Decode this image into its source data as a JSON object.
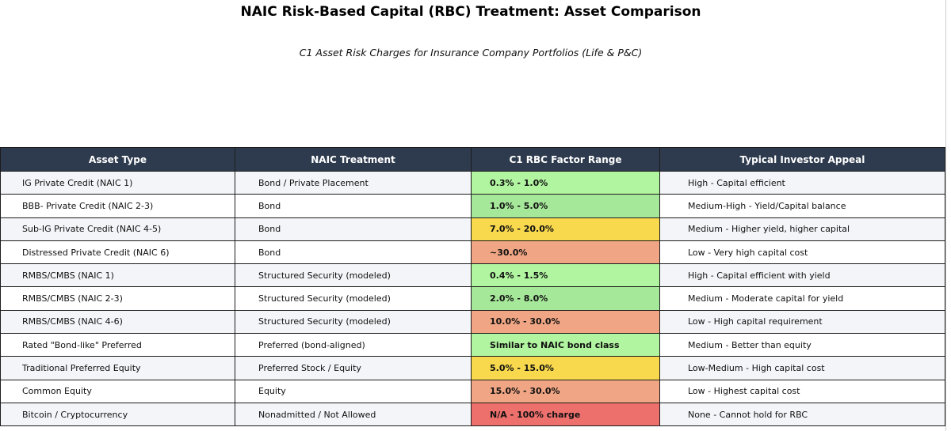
{
  "title": "NAIC Risk-Based Capital (RBC) Treatment: Asset Comparison",
  "subtitle": "C1 Asset Risk Charges for Insurance Company Portfolios (Life & P&C)",
  "table": {
    "headers": [
      "Asset Type",
      "NAIC Treatment",
      "C1 RBC Factor Range",
      "Typical Investor Appeal"
    ],
    "colors": {
      "header_bg": "#2e3b4e",
      "low": "#b1f5a0",
      "lowmid": "#a6e89a",
      "mid": "#f8d94d",
      "high": "#f0a684",
      "na": "#ee706d"
    },
    "rows": [
      {
        "asset": "IG Private Credit (NAIC 1)",
        "treatment": "Bond / Private Placement",
        "factor": "0.3% - 1.0%",
        "appeal": "High - Capital efficient"
      },
      {
        "asset": "BBB- Private Credit (NAIC 2-3)",
        "treatment": "Bond",
        "factor": "1.0% - 5.0%",
        "appeal": "Medium-High - Yield/Capital balance"
      },
      {
        "asset": "Sub-IG Private Credit (NAIC 4-5)",
        "treatment": "Bond",
        "factor": "7.0% - 20.0%",
        "appeal": "Medium - Higher yield, higher capital"
      },
      {
        "asset": "Distressed Private Credit (NAIC 6)",
        "treatment": "Bond",
        "factor": "~30.0%",
        "appeal": "Low - Very high capital cost"
      },
      {
        "asset": "RMBS/CMBS (NAIC 1)",
        "treatment": "Structured Security (modeled)",
        "factor": "0.4% - 1.5%",
        "appeal": "High - Capital efficient with yield"
      },
      {
        "asset": "RMBS/CMBS (NAIC 2-3)",
        "treatment": "Structured Security (modeled)",
        "factor": "2.0% - 8.0%",
        "appeal": "Medium - Moderate capital for yield"
      },
      {
        "asset": "RMBS/CMBS (NAIC 4-6)",
        "treatment": "Structured Security (modeled)",
        "factor": "10.0% - 30.0%",
        "appeal": "Low - High capital requirement"
      },
      {
        "asset": "Rated \"Bond-like\" Preferred",
        "treatment": "Preferred (bond-aligned)",
        "factor": "Similar to NAIC bond class",
        "appeal": "Medium - Better than equity"
      },
      {
        "asset": "Traditional Preferred Equity",
        "treatment": "Preferred Stock / Equity",
        "factor": "5.0% - 15.0%",
        "appeal": "Low-Medium - High capital cost"
      },
      {
        "asset": "Common Equity",
        "treatment": "Equity",
        "factor": "15.0% - 30.0%",
        "appeal": "Low - Highest capital cost"
      },
      {
        "asset": "Bitcoin / Cryptocurrency",
        "treatment": "Nonadmitted / Not Allowed",
        "factor": "N/A - 100% charge",
        "appeal": "None - Cannot hold for RBC"
      }
    ]
  }
}
